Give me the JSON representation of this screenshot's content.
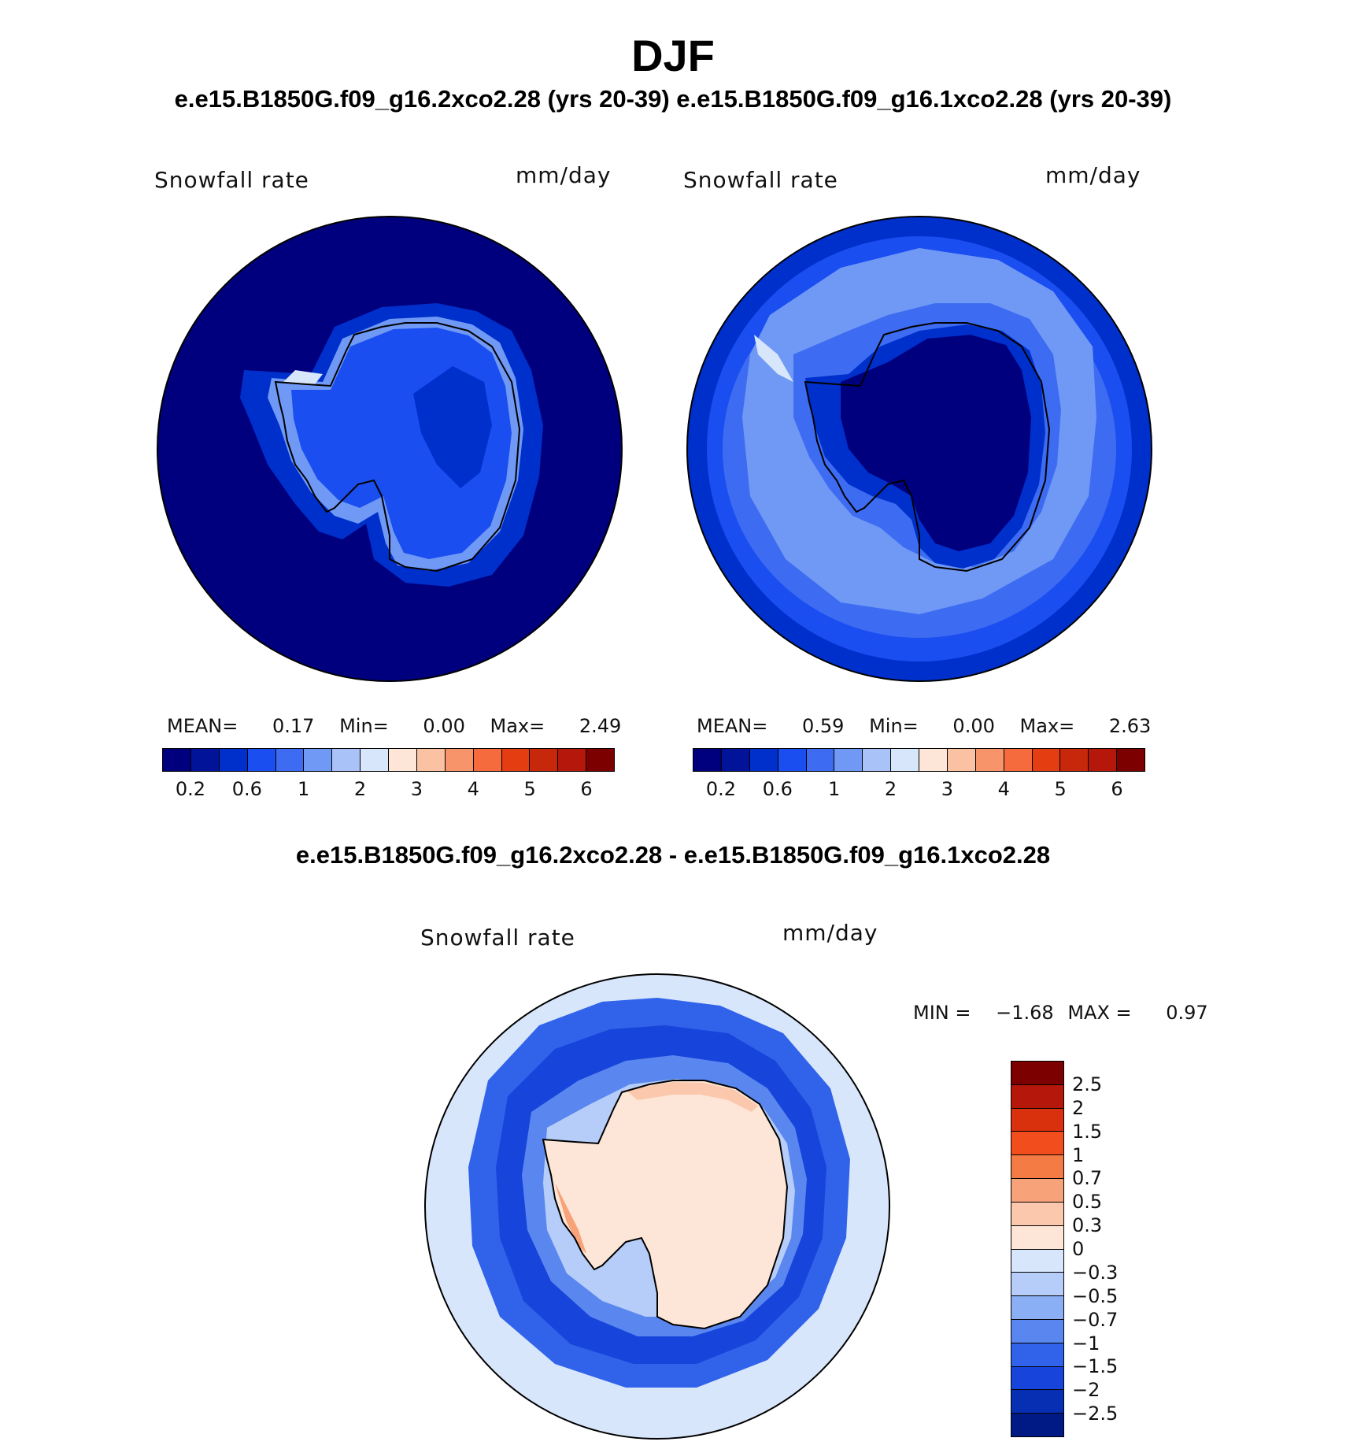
{
  "header": {
    "title": "DJF",
    "subtitle": "e.e15.B1850G.f09_g16.2xco2.28 (yrs 20-39) e.e15.B1850G.f09_g16.1xco2.28 (yrs 20-39)",
    "diff_title": "e.e15.B1850G.f09_g16.2xco2.28 - e.e15.B1850G.f09_g16.1xco2.28"
  },
  "panel1": {
    "variable": "Snowfall rate",
    "units": "mm/day",
    "stats": {
      "mean_label": "MEAN=",
      "mean": "0.17",
      "min_label": "Min=",
      "min": "0.00",
      "max_label": "Max=",
      "max": "2.49"
    }
  },
  "panel2": {
    "variable": "Snowfall rate",
    "units": "mm/day",
    "stats": {
      "mean_label": "MEAN=",
      "mean": "0.59",
      "min_label": "Min=",
      "min": "0.00",
      "max_label": "Max=",
      "max": "2.63"
    }
  },
  "panel3": {
    "variable": "Snowfall rate",
    "units": "mm/day",
    "min_label": "MIN =",
    "min": "−1.68",
    "max_label": "MAX =",
    "max": "0.97"
  },
  "colorbar_abs": {
    "colors": [
      "#00007f",
      "#001399",
      "#0030cc",
      "#1a4ef0",
      "#3d6cf2",
      "#7099f5",
      "#a9c3f8",
      "#d8e6fb",
      "#fde6d7",
      "#fbc1a3",
      "#f8946a",
      "#f56b3d",
      "#e43d12",
      "#c7270a",
      "#b5180a",
      "#7d0000"
    ],
    "ticks": [
      "0.2",
      "0.6",
      "1",
      "2",
      "3",
      "4",
      "5",
      "6"
    ]
  },
  "colorbar_diff": {
    "colors": [
      "#7d0000",
      "#b5180a",
      "#d9300e",
      "#f24e1d",
      "#f57b45",
      "#f8a27a",
      "#fbc8ae",
      "#fde6d7",
      "#d8e6fb",
      "#b5cdf8",
      "#8aaff5",
      "#5a87ef",
      "#3163ea",
      "#1745db",
      "#072fb3",
      "#001a85"
    ],
    "ticks": [
      "2.5",
      "2",
      "1.5",
      "1",
      "0.7",
      "0.5",
      "0.3",
      "0",
      "−0.3",
      "−0.5",
      "−0.7",
      "−1",
      "−1.5",
      "−2",
      "−2.5"
    ]
  }
}
